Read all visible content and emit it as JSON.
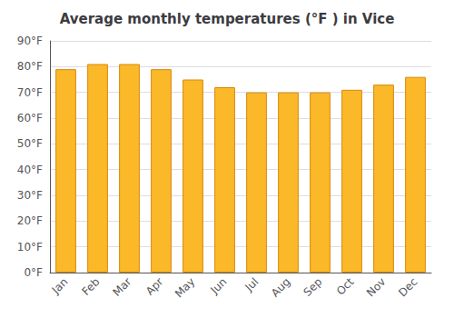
{
  "chart_data": {
    "type": "bar",
    "title": "Average monthly temperatures (°F ) in Vice",
    "categories": [
      "Jan",
      "Feb",
      "Mar",
      "Apr",
      "May",
      "Jun",
      "Jul",
      "Aug",
      "Sep",
      "Oct",
      "Nov",
      "Dec"
    ],
    "values": [
      79,
      81,
      81,
      79,
      75,
      72,
      70,
      70,
      70,
      71,
      73,
      76
    ],
    "color": "#FBB829",
    "ylim": [
      0,
      90
    ],
    "yticks": [
      {
        "value": 0,
        "label": "0°F"
      },
      {
        "value": 10,
        "label": "10°F"
      },
      {
        "value": 20,
        "label": "20°F"
      },
      {
        "value": 30,
        "label": "30°F"
      },
      {
        "value": 40,
        "label": "40°F"
      },
      {
        "value": 50,
        "label": "50°F"
      },
      {
        "value": 60,
        "label": "60°F"
      },
      {
        "value": 70,
        "label": "70°F"
      },
      {
        "value": 80,
        "label": "80°F"
      },
      {
        "value": 90,
        "label": "90°F"
      }
    ],
    "grid": true
  }
}
